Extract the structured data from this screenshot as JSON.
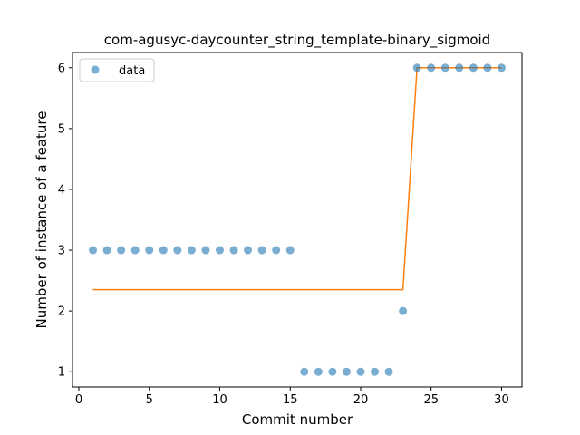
{
  "chart_data": {
    "type": "scatter",
    "title": "com-agusyc-daycounter_string_template-binary_sigmoid",
    "xlabel": "Commit number",
    "ylabel": "Number of instance of a feature",
    "xlim": [
      -0.45,
      31.45
    ],
    "ylim": [
      0.75,
      6.25
    ],
    "xticks": [
      0,
      5,
      10,
      15,
      20,
      25,
      30
    ],
    "yticks": [
      1,
      2,
      3,
      4,
      5,
      6
    ],
    "grid": false,
    "legend_position": "upper-left",
    "series": [
      {
        "name": "data",
        "kind": "scatter",
        "color": "#1f77b4",
        "x": [
          1,
          2,
          3,
          4,
          5,
          6,
          7,
          8,
          9,
          10,
          11,
          12,
          13,
          14,
          15,
          16,
          17,
          18,
          19,
          20,
          21,
          22,
          23,
          24,
          25,
          26,
          27,
          28,
          29,
          30
        ],
        "y": [
          3,
          3,
          3,
          3,
          3,
          3,
          3,
          3,
          3,
          3,
          3,
          3,
          3,
          3,
          3,
          1,
          1,
          1,
          1,
          1,
          1,
          1,
          2,
          6,
          6,
          6,
          6,
          6,
          6,
          6
        ]
      },
      {
        "kind": "line",
        "color": "#ff7f0e",
        "x": [
          1,
          23,
          24,
          30
        ],
        "y": [
          2.35,
          2.35,
          6.0,
          6.0
        ]
      }
    ]
  }
}
